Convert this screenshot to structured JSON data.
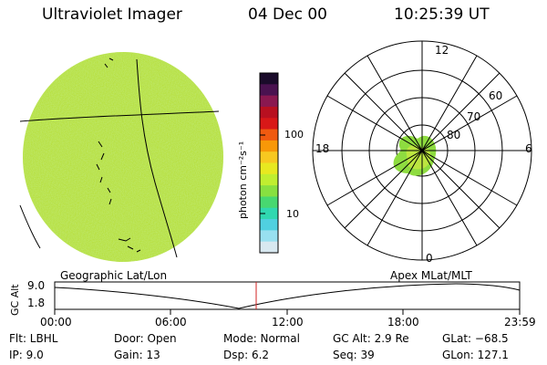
{
  "header": {
    "instrument": "Ultraviolet Imager",
    "date": "04 Dec 00",
    "time": "10:25:39 UT"
  },
  "colorbar": {
    "unit_label": "photon cm⁻²s⁻¹",
    "tick_100": "100",
    "tick_10": "10",
    "colors": [
      "#1a0b2a",
      "#4a1250",
      "#8a1850",
      "#b81020",
      "#d81818",
      "#f05a10",
      "#f89808",
      "#f8c820",
      "#e8e820",
      "#c0ee30",
      "#88e040",
      "#48d870",
      "#30d8b0",
      "#50d0e0",
      "#98e0f0",
      "#d8e8f0"
    ]
  },
  "polar": {
    "mlt_labels": {
      "top": "12",
      "left": "18",
      "right": "6",
      "bottom": "0"
    },
    "lat_labels": [
      "60",
      "70",
      "80"
    ]
  },
  "timeline": {
    "left_title": "Geographic Lat/Lon",
    "right_title": "Apex MLat/MLT",
    "y_label": "GC Alt",
    "y_top": "9.0",
    "y_bottom": "1.8",
    "x_ticks": [
      "00:00",
      "06:00",
      "12:00",
      "18:00",
      "23:59"
    ],
    "current_time_color": "#d02020"
  },
  "info": {
    "flt": "Flt:  LBHL",
    "ip": "IP:  9.0",
    "door": "Door:  Open",
    "gain": "Gain:  13",
    "mode": "Mode:  Normal",
    "dsp": "Dsp:      6.2",
    "gc_alt": "GC Alt:  2.9 Re",
    "seq": "Seq:  39",
    "glat": "GLat:  −68.5",
    "glon": "GLon:  127.1"
  }
}
